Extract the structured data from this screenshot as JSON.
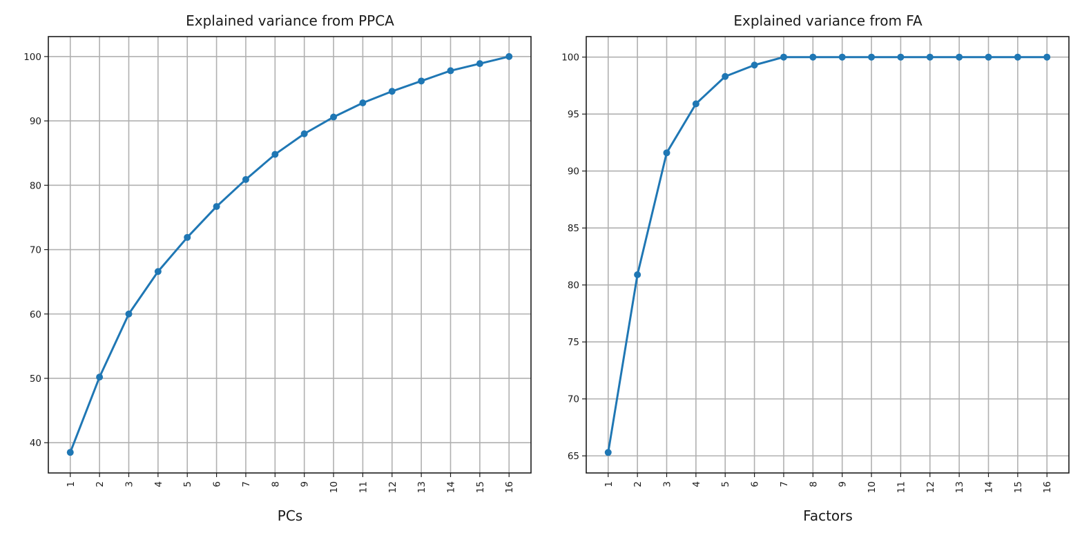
{
  "chart_data": [
    {
      "type": "line",
      "title": "Explained variance from PPCA",
      "xlabel": "PCs",
      "ylabel": "",
      "x": [
        1,
        2,
        3,
        4,
        5,
        6,
        7,
        8,
        9,
        10,
        11,
        12,
        13,
        14,
        15,
        16
      ],
      "x_tick_labels": [
        "1",
        "2",
        "3",
        "4",
        "5",
        "6",
        "7",
        "8",
        "9",
        "10",
        "11",
        "12",
        "13",
        "14",
        "15",
        "16"
      ],
      "series": [
        {
          "values": [
            38.5,
            50.2,
            60.0,
            66.6,
            71.9,
            76.7,
            80.9,
            84.8,
            88.0,
            90.6,
            92.8,
            94.6,
            96.2,
            97.8,
            98.9,
            100.0
          ]
        }
      ],
      "yticks": [
        40,
        50,
        60,
        70,
        80,
        90,
        100
      ],
      "ylim": [
        35.3,
        103.1
      ],
      "xlim": [
        0.25,
        16.75
      ],
      "grid": true,
      "marker": "circle",
      "color": "#1f77b4"
    },
    {
      "type": "line",
      "title": "Explained variance from FA",
      "xlabel": "Factors",
      "ylabel": "",
      "x": [
        1,
        2,
        3,
        4,
        5,
        6,
        7,
        8,
        9,
        10,
        11,
        12,
        13,
        14,
        15,
        16
      ],
      "x_tick_labels": [
        "1",
        "2",
        "3",
        "4",
        "5",
        "6",
        "7",
        "8",
        "9",
        "10",
        "11",
        "12",
        "13",
        "14",
        "15",
        "16"
      ],
      "series": [
        {
          "values": [
            65.3,
            80.9,
            91.6,
            95.9,
            98.3,
            99.3,
            100.0,
            100.0,
            100.0,
            100.0,
            100.0,
            100.0,
            100.0,
            100.0,
            100.0,
            100.0
          ]
        }
      ],
      "yticks": [
        65,
        70,
        75,
        80,
        85,
        90,
        95,
        100
      ],
      "ylim": [
        63.5,
        101.8
      ],
      "xlim": [
        0.25,
        16.75
      ],
      "grid": true,
      "marker": "circle",
      "color": "#1f77b4"
    }
  ]
}
